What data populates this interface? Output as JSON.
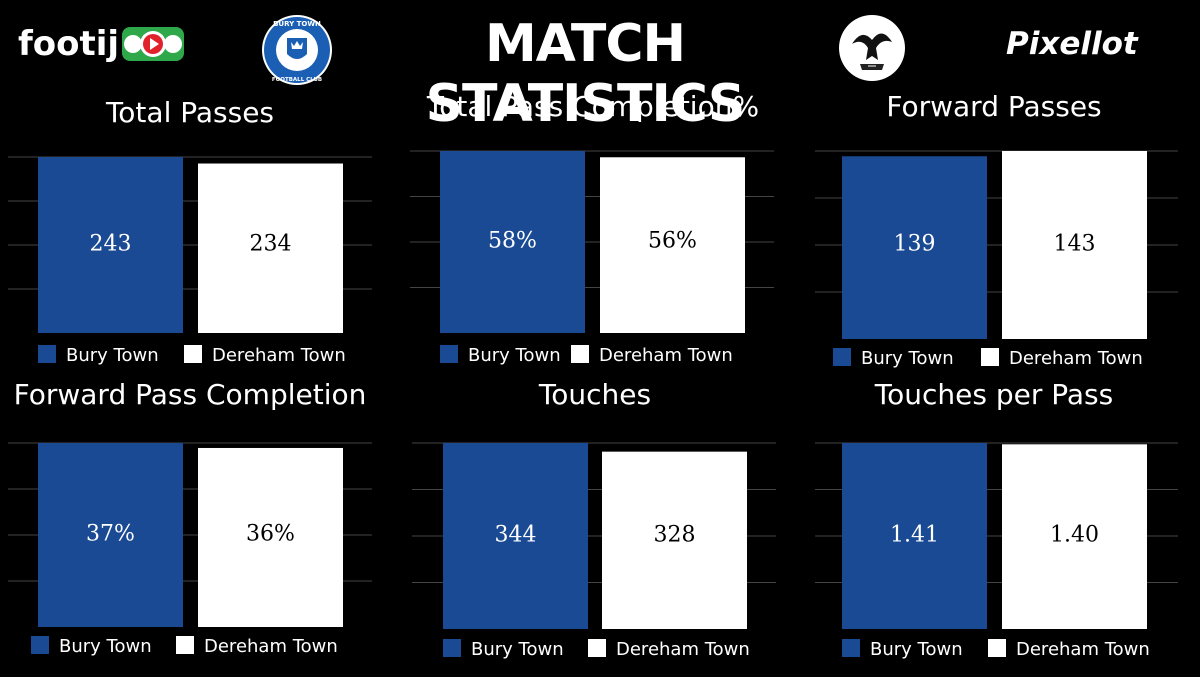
{
  "header": {
    "title": "MATCH STATISTICS",
    "left_logo_text": "footij",
    "right_logo_text": "Pixellot",
    "home_crest_text_top": "BURY TOWN",
    "home_crest_text_bottom": "FOOTBALL CLUB"
  },
  "colors": {
    "background": "#000000",
    "home": "#1a4a93",
    "away": "#ffffff",
    "gridline": "#444444",
    "footij_accent": "#2ea84a",
    "footij_play": "#e0232b"
  },
  "legend": {
    "home": "Bury Town",
    "away": "Dereham Town"
  },
  "chart_data": [
    {
      "type": "bar",
      "title": "Total Passes",
      "categories": [
        "Bury Town",
        "Dereham Town"
      ],
      "values": [
        243,
        234
      ],
      "labels": [
        "243",
        "234"
      ],
      "grid": true,
      "legend": "bottom"
    },
    {
      "type": "bar",
      "title": "Total Pass Completion%",
      "categories": [
        "Bury Town",
        "Dereham Town"
      ],
      "values": [
        58,
        56
      ],
      "labels": [
        "58%",
        "56%"
      ],
      "grid": true,
      "legend": "bottom"
    },
    {
      "type": "bar",
      "title": "Forward Passes",
      "categories": [
        "Bury Town",
        "Dereham Town"
      ],
      "values": [
        139,
        143
      ],
      "labels": [
        "139",
        "143"
      ],
      "grid": true,
      "legend": "bottom"
    },
    {
      "type": "bar",
      "title": "Forward Pass Completion",
      "categories": [
        "Bury Town",
        "Dereham Town"
      ],
      "values": [
        37,
        36
      ],
      "labels": [
        "37%",
        "36%"
      ],
      "grid": true,
      "legend": "bottom"
    },
    {
      "type": "bar",
      "title": "Touches",
      "categories": [
        "Bury Town",
        "Dereham Town"
      ],
      "values": [
        344,
        328
      ],
      "labels": [
        "344",
        "328"
      ],
      "grid": true,
      "legend": "bottom"
    },
    {
      "type": "bar",
      "title": "Touches per Pass",
      "categories": [
        "Bury Town",
        "Dereham Town"
      ],
      "values": [
        1.41,
        1.4
      ],
      "labels": [
        "1.41",
        "1.40"
      ],
      "grid": true,
      "legend": "bottom"
    }
  ]
}
